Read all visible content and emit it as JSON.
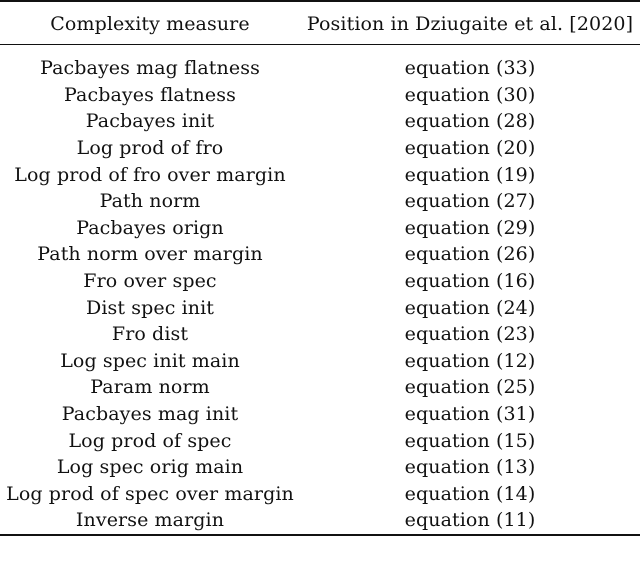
{
  "table": {
    "headers": [
      "Complexity measure",
      "Position in Dziugaite et al. [2020]"
    ],
    "rows": [
      [
        "Pacbayes mag flatness",
        "equation (33)"
      ],
      [
        "Pacbayes flatness",
        "equation (30)"
      ],
      [
        "Pacbayes init",
        "equation (28)"
      ],
      [
        "Log prod of fro",
        "equation (20)"
      ],
      [
        "Log prod of fro over margin",
        "equation (19)"
      ],
      [
        "Path norm",
        "equation (27)"
      ],
      [
        "Pacbayes orign",
        "equation (29)"
      ],
      [
        "Path norm over margin",
        "equation (26)"
      ],
      [
        "Fro over spec",
        "equation (16)"
      ],
      [
        "Dist spec init",
        "equation (24)"
      ],
      [
        "Fro dist",
        "equation (23)"
      ],
      [
        "Log spec init main",
        "equation (12)"
      ],
      [
        "Param norm",
        "equation (25)"
      ],
      [
        "Pacbayes mag init",
        "equation (31)"
      ],
      [
        "Log prod of spec",
        "equation (15)"
      ],
      [
        "Log spec orig main",
        "equation (13)"
      ],
      [
        "Log prod of spec over margin",
        "equation (14)"
      ],
      [
        "Inverse margin",
        "equation (11)"
      ]
    ]
  }
}
